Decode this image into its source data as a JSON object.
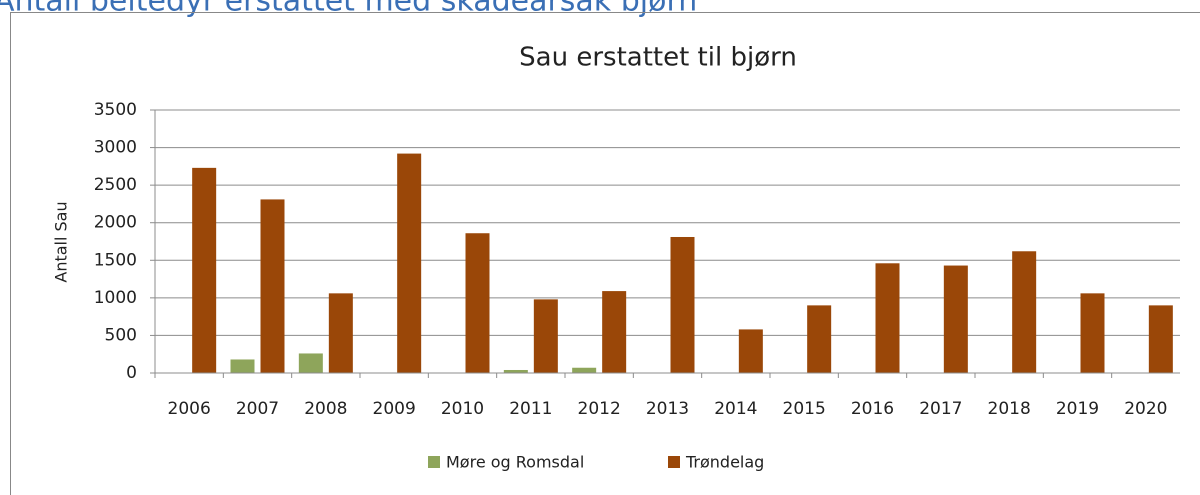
{
  "header": {
    "title": "Antall beitedyr erstattet med skadeårsak bjørn"
  },
  "chart_data": {
    "type": "bar",
    "title": "Sau erstattet til bjørn",
    "y_label": "Antall Sau",
    "categories": [
      "2006",
      "2007",
      "2008",
      "2009",
      "2010",
      "2011",
      "2012",
      "2013",
      "2014",
      "2015",
      "2016",
      "2017",
      "2018",
      "2019",
      "2020"
    ],
    "series": [
      {
        "name": "Møre og Romsdal",
        "color": "#8ea55b",
        "values": [
          0,
          180,
          260,
          0,
          0,
          40,
          70,
          0,
          0,
          0,
          0,
          0,
          0,
          0,
          0
        ]
      },
      {
        "name": "Trøndelag",
        "color": "#9a4708",
        "values": [
          2730,
          2310,
          1060,
          2920,
          1860,
          980,
          1090,
          1810,
          580,
          900,
          1460,
          1430,
          1620,
          1060,
          900
        ]
      }
    ],
    "ylim": [
      0,
      3500
    ],
    "yticks": [
      0,
      500,
      1000,
      1500,
      2000,
      2500,
      3000,
      3500
    ],
    "grid": true,
    "legend": "bottom"
  }
}
